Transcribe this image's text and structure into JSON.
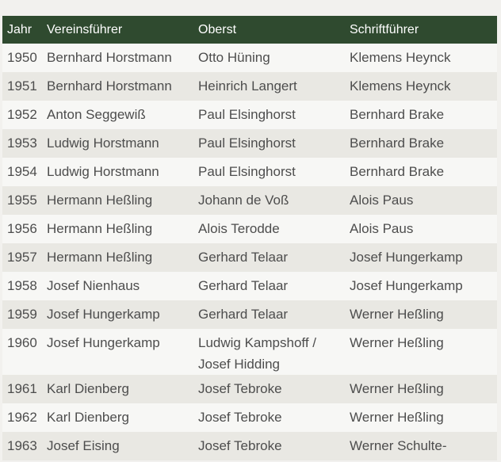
{
  "table": {
    "headers": [
      "Jahr",
      "Vereinsführer",
      "Oberst",
      "Schriftführer"
    ],
    "rows": [
      [
        "1950",
        "Bernhard Horstmann",
        "Otto Hüning",
        "Klemens Heynck"
      ],
      [
        "1951",
        "Bernhard Horstmann",
        "Heinrich Langert",
        "Klemens Heynck"
      ],
      [
        "1952",
        "Anton Seggewiß",
        "Paul Elsinghorst",
        "Bernhard Brake"
      ],
      [
        "1953",
        "Ludwig Horstmann",
        "Paul Elsinghorst",
        "Bernhard Brake"
      ],
      [
        "1954",
        "Ludwig Horstmann",
        "Paul Elsinghorst",
        "Bernhard Brake"
      ],
      [
        "1955",
        "Hermann Heßling",
        "Johann de Voß",
        "Alois Paus"
      ],
      [
        "1956",
        "Hermann Heßling",
        "Alois Terodde",
        "Alois Paus"
      ],
      [
        "1957",
        "Hermann Heßling",
        "Gerhard Telaar",
        "Josef Hungerkamp"
      ],
      [
        "1958",
        "Josef Nienhaus",
        "Gerhard Telaar",
        "Josef Hungerkamp"
      ],
      [
        "1959",
        "Josef Hungerkamp",
        "Gerhard Telaar",
        "Werner Heßling"
      ],
      [
        "1960",
        "Josef Hungerkamp",
        "Ludwig Kampshoff / Josef Hidding",
        "Werner Heßling"
      ],
      [
        "1961",
        "Karl Dienberg",
        "Josef Tebroke",
        "Werner Heßling"
      ],
      [
        "1962",
        "Karl Dienberg",
        "Josef Tebroke",
        "Werner Heßling"
      ],
      [
        "1963",
        "Josef Eising",
        "Josef Tebroke",
        "Werner Schulte-"
      ]
    ]
  },
  "colors": {
    "header_bg": "#2f4a2f",
    "row_odd": "#f7f7f5",
    "row_even": "#e9e8e3"
  }
}
